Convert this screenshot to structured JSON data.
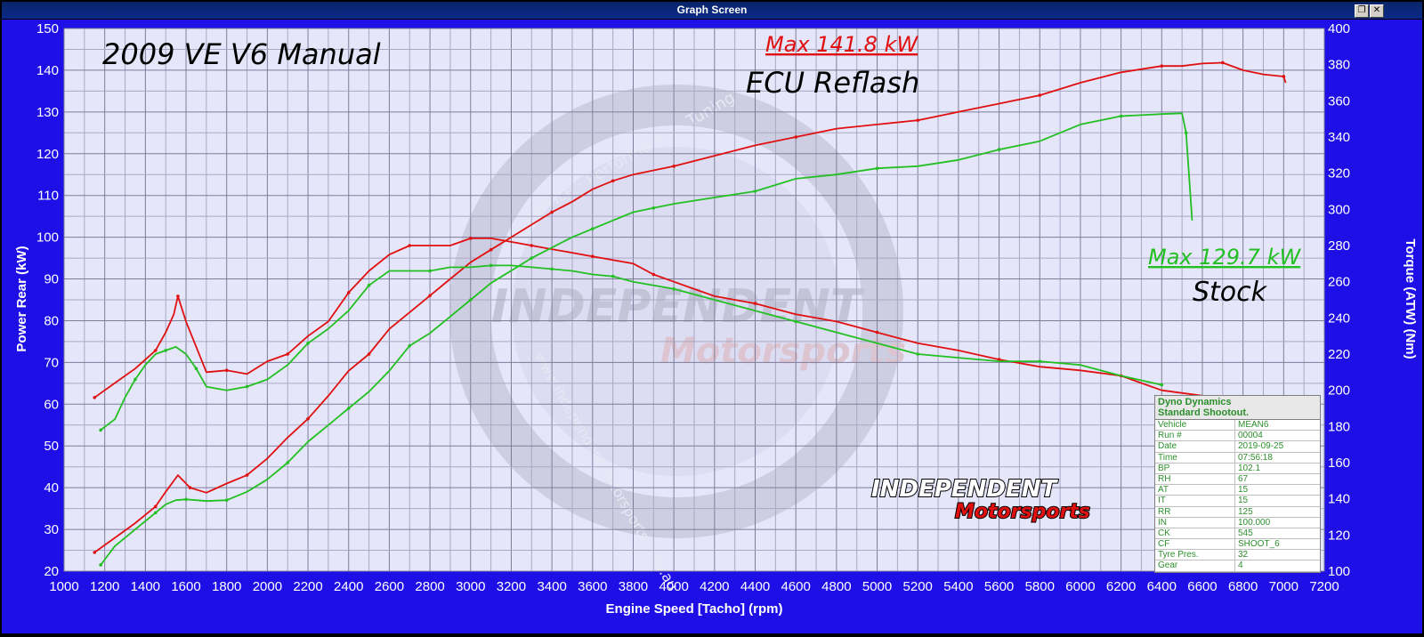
{
  "window": {
    "title": "Graph Screen"
  },
  "chart_data": {
    "type": "line",
    "title": "2009 VE V6 Manual",
    "xlabel": "Engine Speed [Tacho] (rpm)",
    "ylabel": "Power Rear (kW)",
    "y2label": "Torque (ATW) (Nm)",
    "xlim": [
      1000,
      7200
    ],
    "ylim": [
      20,
      150
    ],
    "y2lim": [
      100,
      400
    ],
    "x_ticks": [
      1000,
      1200,
      1400,
      1600,
      1800,
      2000,
      2200,
      2400,
      2600,
      2800,
      3000,
      3200,
      3400,
      3600,
      3800,
      4000,
      4200,
      4400,
      4600,
      4800,
      5000,
      5200,
      5400,
      5600,
      5800,
      6000,
      6200,
      6400,
      6600,
      6800,
      7000,
      7200
    ],
    "y_ticks": [
      20,
      30,
      40,
      50,
      60,
      70,
      80,
      90,
      100,
      110,
      120,
      130,
      140,
      150
    ],
    "y2_ticks": [
      100,
      120,
      140,
      160,
      180,
      200,
      220,
      240,
      260,
      280,
      300,
      320,
      340,
      360,
      380,
      400
    ],
    "grid": true,
    "series": [
      {
        "name": "ECU Reflash",
        "quantity": "power",
        "axis": "left",
        "color": "#e01010",
        "x": [
          1150,
          1250,
          1350,
          1450,
          1500,
          1560,
          1620,
          1700,
          1800,
          1900,
          2000,
          2100,
          2200,
          2300,
          2400,
          2500,
          2600,
          2700,
          2800,
          2900,
          3000,
          3100,
          3200,
          3300,
          3400,
          3500,
          3600,
          3700,
          3800,
          3900,
          4000,
          4200,
          4400,
          4600,
          4800,
          5000,
          5200,
          5400,
          5600,
          5800,
          6000,
          6200,
          6400,
          6500,
          6600,
          6700,
          6800,
          6900,
          7000,
          7010
        ],
        "y": [
          24.5,
          28,
          31.5,
          35.5,
          39,
          43,
          40,
          38.8,
          41,
          43,
          47,
          52,
          56.5,
          62,
          68,
          72,
          78,
          82,
          86,
          90,
          94,
          97,
          100,
          103,
          106,
          108.5,
          111.5,
          113.5,
          115,
          116,
          117,
          119.5,
          122,
          124,
          126,
          127,
          128,
          130,
          132,
          134,
          137,
          139.5,
          141,
          141,
          141.6,
          141.8,
          140,
          139,
          138.5,
          137
        ]
      },
      {
        "name": "ECU Reflash",
        "quantity": "torque",
        "axis": "right",
        "color": "#e01010",
        "x": [
          1150,
          1250,
          1350,
          1450,
          1500,
          1540,
          1560,
          1600,
          1700,
          1800,
          1900,
          2000,
          2100,
          2200,
          2300,
          2400,
          2500,
          2600,
          2700,
          2800,
          2900,
          3000,
          3100,
          3200,
          3300,
          3400,
          3500,
          3600,
          3700,
          3800,
          3900,
          4000,
          4200,
          4400,
          4600,
          4800,
          5000,
          5200,
          5400,
          5600,
          5800,
          6000,
          6200,
          6400,
          6600,
          6780
        ],
        "y": [
          196,
          204,
          212,
          222,
          232,
          242,
          252,
          238,
          210,
          211,
          209,
          216,
          220,
          230,
          238,
          254,
          266,
          275,
          280,
          280,
          280,
          284,
          284,
          282,
          280,
          278,
          276,
          274,
          272,
          270,
          264,
          260,
          252,
          248,
          242,
          238,
          232,
          226,
          222,
          217,
          213,
          211,
          208,
          200,
          197,
          195
        ]
      },
      {
        "name": "Stock",
        "quantity": "power",
        "axis": "left",
        "color": "#22c022",
        "x": [
          1180,
          1250,
          1350,
          1450,
          1500,
          1550,
          1600,
          1650,
          1700,
          1800,
          1900,
          2000,
          2100,
          2200,
          2300,
          2400,
          2500,
          2600,
          2700,
          2800,
          2900,
          3000,
          3100,
          3200,
          3300,
          3400,
          3500,
          3600,
          3700,
          3800,
          3900,
          4000,
          4200,
          4400,
          4600,
          4800,
          5000,
          5200,
          5400,
          5600,
          5800,
          6000,
          6200,
          6400,
          6500,
          6520,
          6550
        ],
        "y": [
          21.5,
          26,
          30,
          34,
          36,
          37,
          37.2,
          37,
          36.8,
          37,
          39,
          42,
          46,
          51,
          55,
          59,
          63,
          68,
          74,
          77,
          81,
          85,
          89,
          92,
          95,
          97.5,
          100,
          102,
          104,
          106,
          107,
          108,
          109.5,
          111,
          114,
          115,
          116.5,
          117,
          118.5,
          121,
          123,
          127,
          129,
          129.5,
          129.7,
          125,
          104
        ]
      },
      {
        "name": "Stock",
        "quantity": "torque",
        "axis": "right",
        "color": "#22c022",
        "x": [
          1180,
          1250,
          1300,
          1350,
          1400,
          1450,
          1500,
          1550,
          1600,
          1650,
          1700,
          1800,
          1900,
          2000,
          2100,
          2200,
          2300,
          2400,
          2500,
          2600,
          2700,
          2800,
          2900,
          3000,
          3100,
          3200,
          3300,
          3400,
          3500,
          3600,
          3700,
          3800,
          3900,
          4000,
          4200,
          4400,
          4600,
          4800,
          5000,
          5200,
          5400,
          5600,
          5800,
          6000,
          6200,
          6400
        ],
        "y": [
          178,
          184,
          196,
          206,
          214,
          220,
          222,
          224,
          220,
          212,
          202,
          200,
          202,
          206,
          214,
          226,
          234,
          244,
          258,
          266,
          266,
          266,
          268,
          268,
          269,
          269,
          268,
          267,
          266,
          264,
          263,
          260,
          258,
          256,
          250,
          244,
          238,
          232,
          226,
          220,
          218,
          216,
          216,
          214,
          208,
          203
        ]
      }
    ],
    "annotations": [
      {
        "text": "Max 141.8 kW",
        "color": "#e01010",
        "underline": true
      },
      {
        "text": "ECU Reflash",
        "color": "#000000"
      },
      {
        "text": "Max 129.7 kW",
        "color": "#22c022",
        "underline": true
      },
      {
        "text": "Stock",
        "color": "#000000"
      }
    ]
  },
  "info_table": {
    "header": [
      "Dyno Dynamics",
      "Standard Shootout."
    ],
    "rows": [
      [
        "Vehicle",
        "MEAN6"
      ],
      [
        "Run #",
        "00004"
      ],
      [
        "Date",
        "2019-09-25"
      ],
      [
        "Time",
        "07:56:18"
      ],
      [
        "BP",
        "102.1"
      ],
      [
        "RH",
        "67"
      ],
      [
        "AT",
        "15"
      ],
      [
        "IT",
        "15"
      ],
      [
        "RR",
        "125"
      ],
      [
        "IN",
        "100.000"
      ],
      [
        "CK",
        "545"
      ],
      [
        "CF",
        "SHOOT_6"
      ],
      [
        "Tyre Pres.",
        "32"
      ],
      [
        "Gear",
        "4"
      ]
    ]
  },
  "logo": {
    "line1": "INDEPENDENT",
    "line2": "Motorsports"
  },
  "watermark": {
    "ring_text": "Service · Performance · Tuning",
    "url": "www.independentmotorsports.com.au"
  }
}
